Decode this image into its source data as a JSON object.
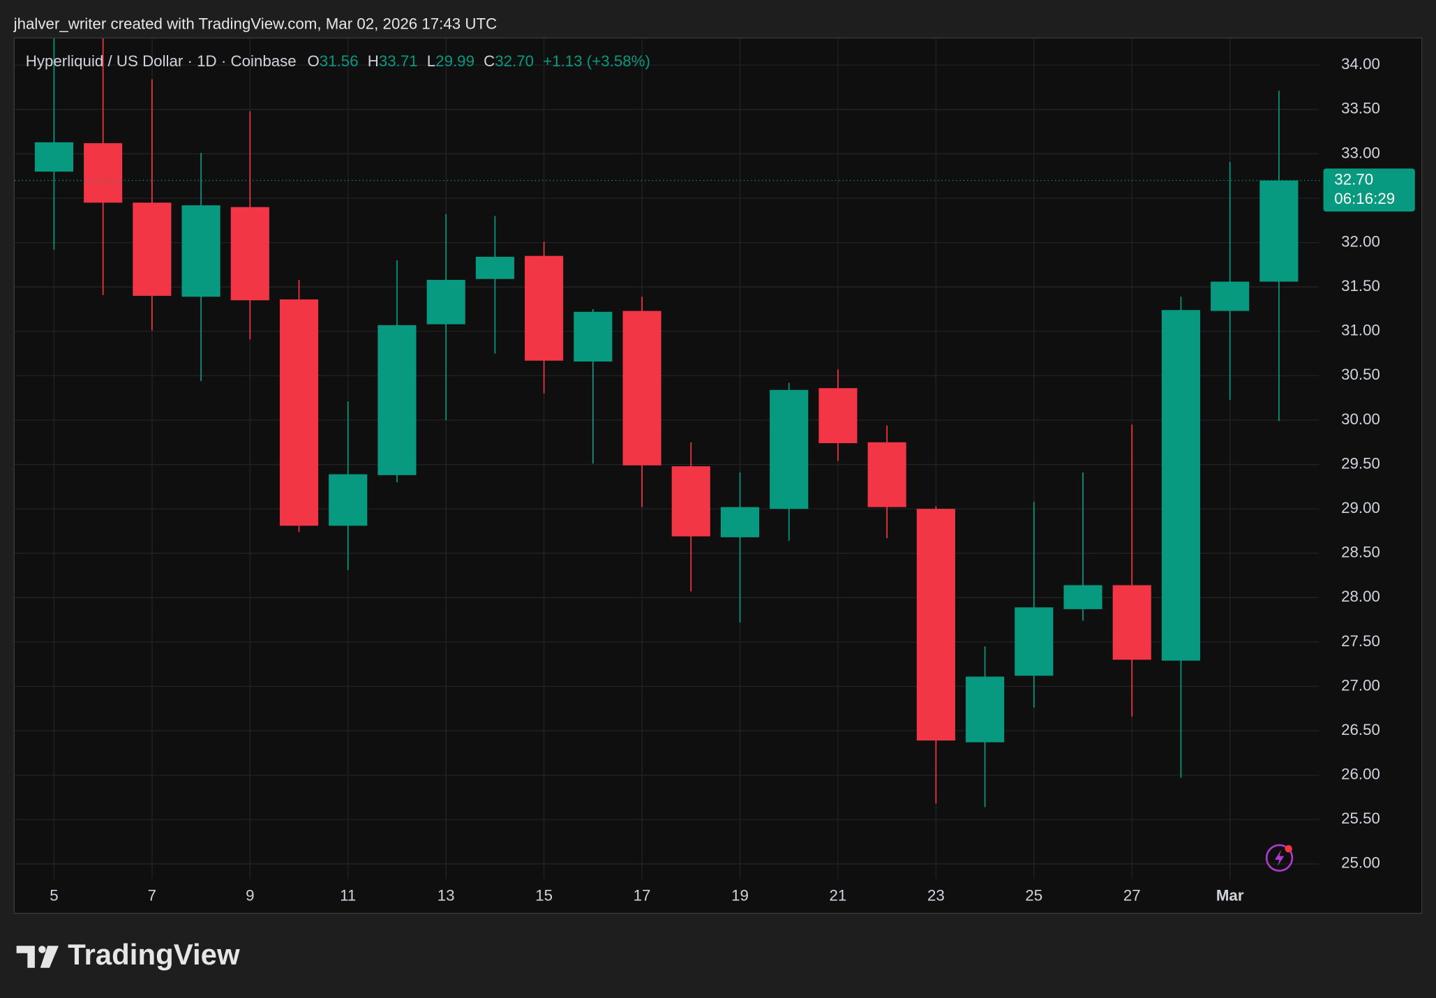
{
  "chart_data": {
    "type": "candlestick",
    "attribution": "jhalver_writer created with TradingView.com, Mar 02, 2026 17:43 UTC",
    "legend": {
      "symbol": "Hyperliquid / US Dollar · 1D · Coinbase",
      "items": [
        {
          "key": "O",
          "value": "31.56"
        },
        {
          "key": "H",
          "value": "33.71"
        },
        {
          "key": "L",
          "value": "29.99"
        },
        {
          "key": "C",
          "value": "32.70"
        }
      ],
      "change": "+1.13 (+3.58%)"
    },
    "price_label": {
      "value": "32.70",
      "countdown": "06:16:29"
    },
    "brand": "TradingView",
    "categories": [
      "5",
      null,
      "7",
      null,
      "9",
      null,
      "11",
      null,
      "13",
      null,
      "15",
      null,
      "17",
      null,
      "19",
      null,
      "21",
      null,
      "23",
      null,
      "25",
      null,
      "27",
      null,
      "Mar",
      null
    ],
    "open": [
      32.8,
      33.12,
      32.45,
      31.39,
      32.4,
      31.36,
      28.81,
      29.38,
      31.08,
      31.59,
      31.85,
      30.66,
      31.23,
      29.48,
      28.68,
      29.0,
      30.36,
      29.75,
      29.0,
      26.37,
      27.12,
      27.87,
      28.14,
      27.29,
      31.23,
      31.56
    ],
    "high": [
      34.4,
      34.45,
      33.84,
      33.01,
      33.48,
      31.58,
      30.21,
      31.8,
      32.32,
      32.3,
      32.01,
      31.25,
      31.39,
      29.75,
      29.41,
      30.42,
      30.57,
      29.94,
      29.03,
      27.45,
      29.08,
      29.41,
      29.95,
      31.39,
      32.91,
      33.71
    ],
    "low": [
      31.92,
      31.41,
      31.01,
      30.44,
      30.91,
      28.74,
      28.31,
      29.3,
      30.0,
      30.75,
      30.3,
      29.51,
      29.02,
      28.07,
      27.72,
      28.64,
      29.54,
      28.67,
      25.68,
      25.64,
      26.76,
      27.74,
      26.66,
      25.97,
      30.23,
      29.99
    ],
    "close": [
      33.13,
      32.45,
      31.4,
      32.42,
      31.35,
      28.81,
      29.39,
      31.07,
      31.58,
      31.84,
      30.67,
      31.22,
      29.49,
      28.69,
      29.02,
      30.34,
      29.74,
      29.02,
      26.39,
      27.11,
      27.89,
      28.14,
      27.3,
      31.24,
      31.56,
      32.7
    ],
    "up_color": "#089981",
    "down_color": "#f23645",
    "ylim": [
      24.83,
      34.3
    ],
    "yticks": [
      {
        "value": 25,
        "label": "25.00"
      },
      {
        "value": 25.5,
        "label": "25.50"
      },
      {
        "value": 26,
        "label": "26.00"
      },
      {
        "value": 26.5,
        "label": "26.50"
      },
      {
        "value": 27,
        "label": "27.00"
      },
      {
        "value": 27.5,
        "label": "27.50"
      },
      {
        "value": 28,
        "label": "28.00"
      },
      {
        "value": 28.5,
        "label": "28.50"
      },
      {
        "value": 29,
        "label": "29.00"
      },
      {
        "value": 29.5,
        "label": "29.50"
      },
      {
        "value": 30,
        "label": "30.00"
      },
      {
        "value": 30.5,
        "label": "30.50"
      },
      {
        "value": 31,
        "label": "31.00"
      },
      {
        "value": 31.5,
        "label": "31.50"
      },
      {
        "value": 32,
        "label": "32.00"
      },
      {
        "value": 32.5,
        "label": "32.50"
      },
      {
        "value": 33,
        "label": "33.00"
      },
      {
        "value": 33.5,
        "label": "33.50"
      },
      {
        "value": 34,
        "label": "34.00"
      }
    ],
    "grid": true
  }
}
